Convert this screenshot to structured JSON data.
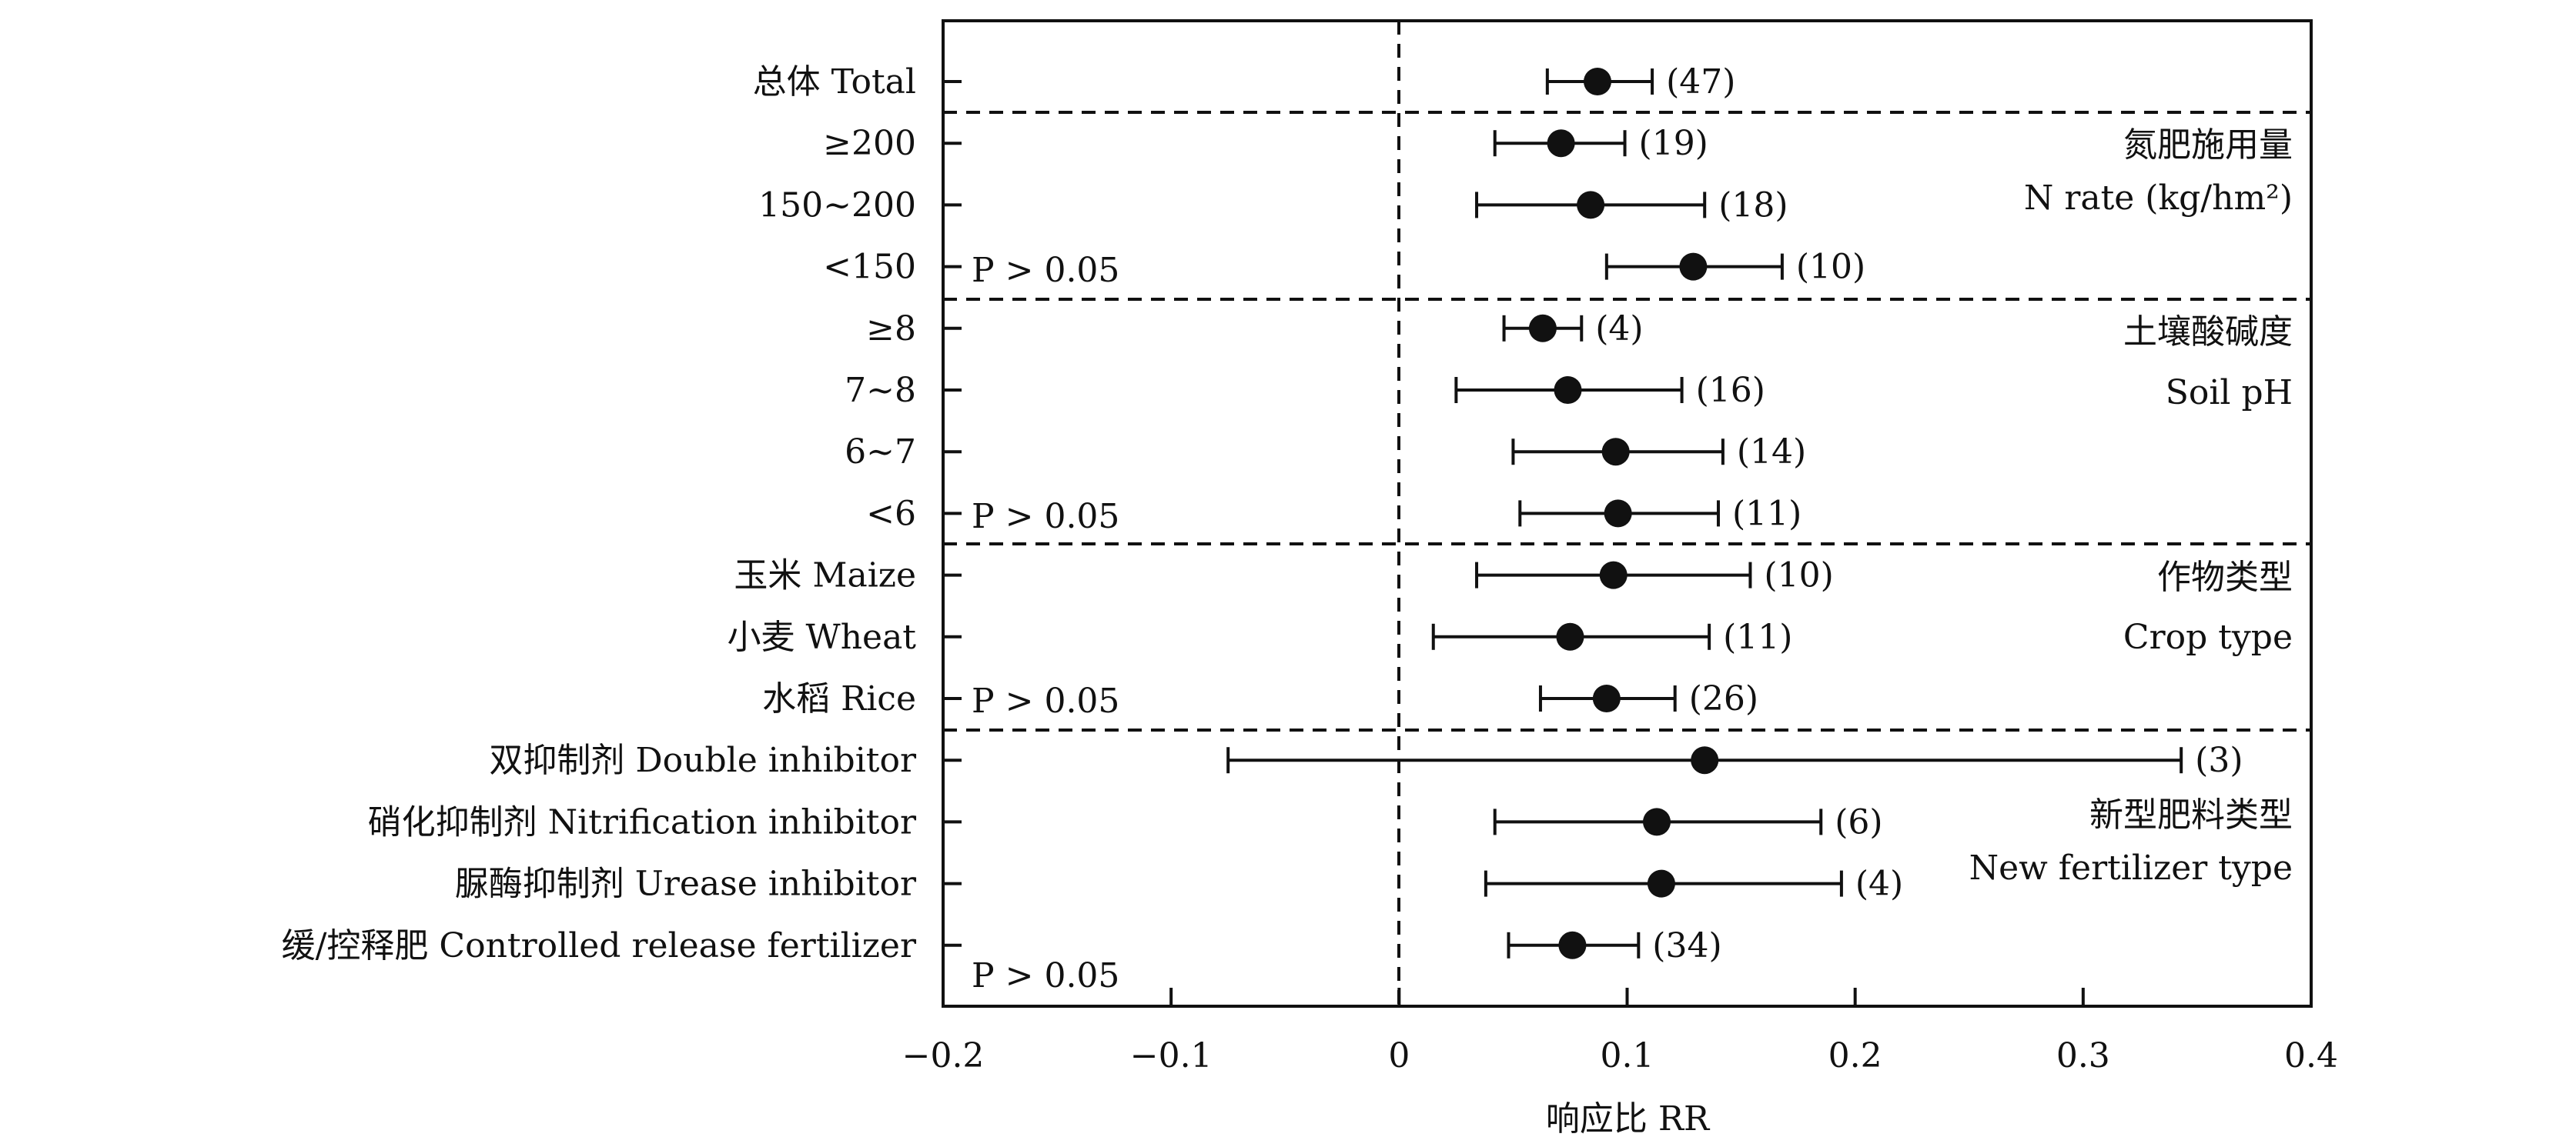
{
  "chart_data": {
    "type": "forest",
    "xlabel": "响应比 RR",
    "xlim": [
      -0.2,
      0.4
    ],
    "xticks": [
      -0.2,
      -0.1,
      0,
      0.1,
      0.2,
      0.3,
      0.4
    ],
    "xtick_labels": [
      "−0.2",
      "−0.1",
      "0",
      "0.1",
      "0.2",
      "0.3",
      "0.4"
    ],
    "reference_line_x": 0,
    "grid": false,
    "rows": [
      {
        "label": "总体 Total",
        "rr": 0.087,
        "ci": [
          0.065,
          0.111
        ],
        "n_label": "(47)"
      },
      {
        "label": "≥200",
        "rr": 0.071,
        "ci": [
          0.042,
          0.099
        ],
        "n_label": "(19)"
      },
      {
        "label": "150~200",
        "rr": 0.084,
        "ci": [
          0.034,
          0.134
        ],
        "n_label": "(18)"
      },
      {
        "label": "<150",
        "rr": 0.129,
        "ci": [
          0.091,
          0.168
        ],
        "n_label": "(10)"
      },
      {
        "label": "≥8",
        "rr": 0.063,
        "ci": [
          0.046,
          0.08
        ],
        "n_label": "(4)"
      },
      {
        "label": "7~8",
        "rr": 0.074,
        "ci": [
          0.025,
          0.124
        ],
        "n_label": "(16)"
      },
      {
        "label": "6~7",
        "rr": 0.095,
        "ci": [
          0.05,
          0.142
        ],
        "n_label": "(14)"
      },
      {
        "label": "<6",
        "rr": 0.096,
        "ci": [
          0.053,
          0.14
        ],
        "n_label": "(11)"
      },
      {
        "label": "玉米 Maize",
        "rr": 0.094,
        "ci": [
          0.034,
          0.154
        ],
        "n_label": "(10)"
      },
      {
        "label": "小麦 Wheat",
        "rr": 0.075,
        "ci": [
          0.015,
          0.136
        ],
        "n_label": "(11)"
      },
      {
        "label": "水稻 Rice",
        "rr": 0.091,
        "ci": [
          0.062,
          0.121
        ],
        "n_label": "(26)"
      },
      {
        "label": "双抑制剂 Double inhibitor",
        "rr": 0.134,
        "ci": [
          -0.075,
          0.343
        ],
        "n_label": "(3)"
      },
      {
        "label": "硝化抑制剂 Nitrification inhibitor",
        "rr": 0.113,
        "ci": [
          0.042,
          0.185
        ],
        "n_label": "(6)"
      },
      {
        "label": "脲酶抑制剂 Urease inhibitor",
        "rr": 0.115,
        "ci": [
          0.038,
          0.194
        ],
        "n_label": "(4)"
      },
      {
        "label": "缓/控释肥 Controlled release fertilizer",
        "rr": 0.076,
        "ci": [
          0.048,
          0.105
        ],
        "n_label": "(34)"
      }
    ],
    "groups": [
      {
        "title_cn": "氮肥施用量",
        "title_en": "N rate (kg/hm²)",
        "p_text": "P > 0.05"
      },
      {
        "title_cn": "土壤酸碱度",
        "title_en": "Soil pH",
        "p_text": "P > 0.05"
      },
      {
        "title_cn": "作物类型",
        "title_en": "Crop type",
        "p_text": "P > 0.05"
      },
      {
        "title_cn": "新型肥料类型",
        "title_en": "New fertilizer type",
        "p_text": "P > 0.05"
      }
    ]
  }
}
